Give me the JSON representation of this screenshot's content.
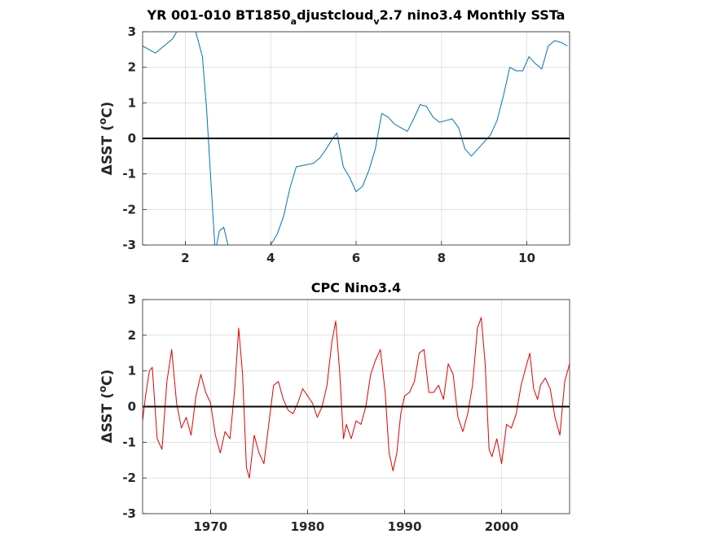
{
  "colors": {
    "series_top": "#0072bd",
    "series_bottom": "#e00000",
    "zero_line": "#000000",
    "grid": "#dcdcdc"
  },
  "chart_data": [
    {
      "type": "line",
      "title_main": "YR 001-010 BT1850",
      "title_sub1": "a",
      "title_mid": "djustcloud",
      "title_sub2": "v",
      "title_end": "2.7 nino3.4 Monthly SSTa",
      "ylabel_prefix": "ΔSST (",
      "ylabel_sup": "o",
      "ylabel_suffix": "C)",
      "xlim": [
        1,
        11
      ],
      "ylim": [
        -3,
        3
      ],
      "xticks": [
        2,
        4,
        6,
        8,
        10
      ],
      "yticks": [
        -3,
        -2,
        -1,
        0,
        1,
        2,
        3
      ],
      "grid": true,
      "zero_line": 0,
      "x": [
        1.0,
        1.15,
        1.3,
        1.5,
        1.7,
        1.85,
        2.0,
        2.2,
        2.4,
        2.5,
        2.6,
        2.7,
        2.8,
        2.9,
        3.0,
        3.2,
        3.4,
        3.6,
        3.8,
        4.0,
        4.15,
        4.3,
        4.45,
        4.6,
        4.8,
        5.0,
        5.15,
        5.3,
        5.45,
        5.55,
        5.7,
        5.85,
        6.0,
        6.15,
        6.3,
        6.45,
        6.6,
        6.75,
        6.9,
        7.05,
        7.2,
        7.35,
        7.5,
        7.65,
        7.8,
        7.95,
        8.1,
        8.25,
        8.4,
        8.55,
        8.7,
        8.85,
        9.0,
        9.15,
        9.3,
        9.45,
        9.6,
        9.75,
        9.9,
        10.05,
        10.2,
        10.35,
        10.5,
        10.65,
        10.8,
        10.95
      ],
      "values": [
        2.6,
        2.5,
        2.4,
        2.6,
        2.8,
        3.1,
        3.3,
        3.2,
        2.3,
        0.8,
        -1.2,
        -3.2,
        -2.6,
        -2.5,
        -3.0,
        -3.4,
        -3.5,
        -3.4,
        -3.3,
        -3.0,
        -2.7,
        -2.2,
        -1.4,
        -0.8,
        -0.75,
        -0.7,
        -0.55,
        -0.3,
        0.0,
        0.15,
        -0.8,
        -1.1,
        -1.5,
        -1.35,
        -0.9,
        -0.3,
        0.7,
        0.6,
        0.4,
        0.3,
        0.2,
        0.55,
        0.95,
        0.9,
        0.6,
        0.45,
        0.5,
        0.55,
        0.3,
        -0.3,
        -0.5,
        -0.3,
        -0.1,
        0.1,
        0.5,
        1.2,
        2.0,
        1.9,
        1.9,
        2.3,
        2.1,
        1.95,
        2.6,
        2.75,
        2.7,
        2.6
      ]
    },
    {
      "type": "line",
      "title": "CPC Nino3.4",
      "ylabel_prefix": "ΔSST (",
      "ylabel_sup": "o",
      "ylabel_suffix": "C)",
      "xlim": [
        1963,
        2007
      ],
      "ylim": [
        -3,
        3
      ],
      "xticks": [
        1970,
        1980,
        1990,
        2000
      ],
      "yticks": [
        -3,
        -2,
        -1,
        0,
        1,
        2,
        3
      ],
      "grid": true,
      "zero_line": 0,
      "x": [
        1963.0,
        1963.3,
        1963.7,
        1964.0,
        1964.5,
        1965.0,
        1965.5,
        1966.0,
        1966.5,
        1967.0,
        1967.5,
        1968.0,
        1968.5,
        1969.0,
        1969.5,
        1970.0,
        1970.5,
        1971.0,
        1971.5,
        1972.0,
        1972.5,
        1972.9,
        1973.3,
        1973.7,
        1974.0,
        1974.5,
        1975.0,
        1975.5,
        1976.0,
        1976.5,
        1977.0,
        1977.5,
        1978.0,
        1978.5,
        1979.0,
        1979.5,
        1980.0,
        1980.5,
        1981.0,
        1981.5,
        1982.0,
        1982.5,
        1982.9,
        1983.3,
        1983.7,
        1984.0,
        1984.5,
        1985.0,
        1985.5,
        1986.0,
        1986.5,
        1987.0,
        1987.5,
        1988.0,
        1988.4,
        1988.8,
        1989.2,
        1989.6,
        1990.0,
        1990.5,
        1991.0,
        1991.5,
        1992.0,
        1992.5,
        1993.0,
        1993.5,
        1994.0,
        1994.5,
        1995.0,
        1995.5,
        1996.0,
        1996.5,
        1997.0,
        1997.5,
        1997.9,
        1998.3,
        1998.7,
        1999.0,
        1999.5,
        2000.0,
        2000.5,
        2001.0,
        2001.5,
        2002.0,
        2002.5,
        2002.9,
        2003.3,
        2003.7,
        2004.0,
        2004.5,
        2005.0,
        2005.5,
        2006.0,
        2006.5,
        2007.0
      ],
      "values": [
        -0.4,
        0.3,
        1.0,
        1.1,
        -0.9,
        -1.2,
        0.7,
        1.6,
        0.1,
        -0.6,
        -0.3,
        -0.8,
        0.3,
        0.9,
        0.4,
        0.1,
        -0.8,
        -1.3,
        -0.7,
        -0.9,
        0.5,
        2.2,
        0.9,
        -1.7,
        -2.0,
        -0.8,
        -1.3,
        -1.6,
        -0.5,
        0.6,
        0.7,
        0.2,
        -0.1,
        -0.2,
        0.1,
        0.5,
        0.3,
        0.1,
        -0.3,
        0.0,
        0.6,
        1.8,
        2.4,
        1.0,
        -0.9,
        -0.5,
        -0.9,
        -0.4,
        -0.5,
        0.0,
        0.9,
        1.3,
        1.6,
        0.4,
        -1.3,
        -1.8,
        -1.3,
        -0.2,
        0.3,
        0.4,
        0.7,
        1.5,
        1.6,
        0.4,
        0.4,
        0.6,
        0.2,
        1.2,
        0.9,
        -0.3,
        -0.7,
        -0.2,
        0.6,
        2.2,
        2.5,
        1.2,
        -1.2,
        -1.4,
        -0.9,
        -1.6,
        -0.5,
        -0.6,
        -0.2,
        0.6,
        1.1,
        1.5,
        0.5,
        0.2,
        0.6,
        0.8,
        0.5,
        -0.3,
        -0.8,
        0.7,
        1.2
      ]
    }
  ]
}
